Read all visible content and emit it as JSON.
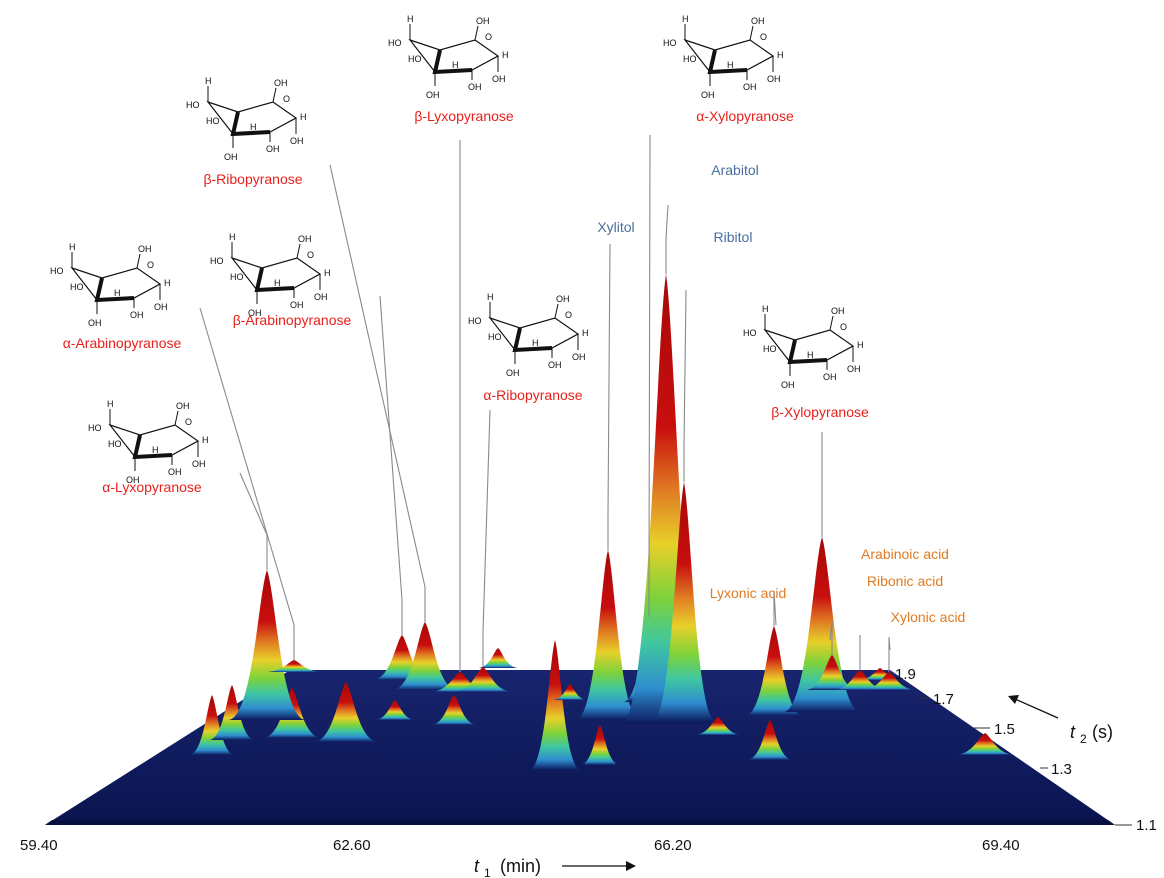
{
  "colors": {
    "sugar": "#e8211b",
    "alditol": "#4a6f9e",
    "acid": "#e07b22",
    "plane": "#0d1a5e",
    "leader": "#8a8a8a"
  },
  "chart_data": {
    "type": "3d-surface",
    "title": "",
    "x_axis": {
      "symbol": "t",
      "subscript": "1",
      "unit": "(min)",
      "ticks": [
        "59.40",
        "62.60",
        "66.20",
        "69.40"
      ]
    },
    "y_axis": {
      "symbol": "t",
      "subscript": "2",
      "unit": "(s)",
      "ticks": [
        "1.1",
        "1.3",
        "1.5",
        "1.7",
        "1.9"
      ]
    },
    "colormap": [
      "#0d1a5e",
      "#2e8fd0",
      "#3fc7a0",
      "#7ed23a",
      "#e8d02a",
      "#e07b22",
      "#c80e0e"
    ],
    "peaks": [
      {
        "name": "α-Lyxopyranose",
        "class": "sugar",
        "t1": 61.0,
        "rel_height": 0.46
      },
      {
        "name": "α-Arabinopyranose",
        "class": "sugar",
        "t1": 61.3,
        "rel_height": 0.1
      },
      {
        "name": "β-Arabinopyranose",
        "class": "sugar",
        "t1": 62.9,
        "rel_height": 0.12
      },
      {
        "name": "β-Ribopyranose",
        "class": "sugar",
        "t1": 63.2,
        "rel_height": 0.13
      },
      {
        "name": "β-Lyxopyranose",
        "class": "sugar",
        "t1": 63.6,
        "rel_height": 0.1
      },
      {
        "name": "α-Ribopyranose",
        "class": "sugar",
        "t1": 64.0,
        "rel_height": 0.08
      },
      {
        "name": "Xylitol",
        "class": "alditol",
        "t1": 65.4,
        "rel_height": 0.52
      },
      {
        "name": "α-Xylopyranose",
        "class": "sugar",
        "t1": 65.8,
        "rel_height": 0.33
      },
      {
        "name": "Arabitol",
        "class": "alditol",
        "t1": 66.0,
        "rel_height": 1.0
      },
      {
        "name": "Ribitol",
        "class": "alditol",
        "t1": 66.2,
        "rel_height": 0.56
      },
      {
        "name": "Lyxonic acid",
        "class": "acid",
        "t1": 67.4,
        "rel_height": 0.1
      },
      {
        "name": "β-Xylopyranose",
        "class": "sugar",
        "t1": 68.0,
        "rel_height": 0.5
      },
      {
        "name": "Arabinoic acid",
        "class": "acid",
        "t1": 68.2,
        "rel_height": 0.2
      },
      {
        "name": "Ribonic acid",
        "class": "acid",
        "t1": 68.5,
        "rel_height": 0.12
      },
      {
        "name": "Xylonic acid",
        "class": "acid",
        "t1": 68.9,
        "rel_height": 0.09
      }
    ],
    "structure_atoms": [
      "H",
      "OH",
      "HO",
      "O"
    ]
  }
}
